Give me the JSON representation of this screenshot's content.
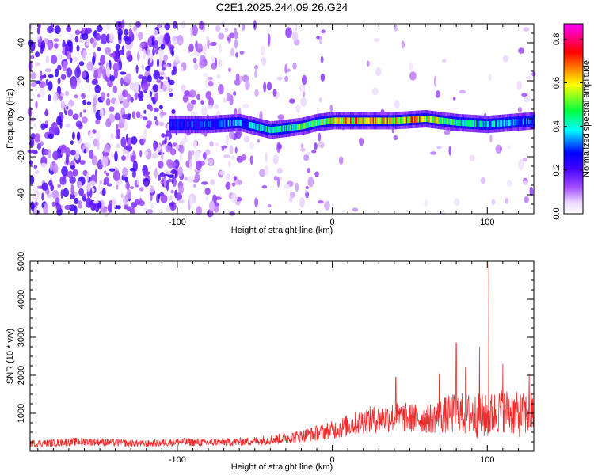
{
  "title": "C2E1.2025.244.09.26.G24",
  "chart_data": [
    {
      "type": "heatmap",
      "title": "C2E1.2025.244.09.26.G24",
      "xlabel": "Height of straight line (km)",
      "ylabel": "Frequency (Hz)",
      "xlim": [
        -195,
        130
      ],
      "ylim": [
        -50,
        50
      ],
      "xticks": [
        -100,
        0,
        100
      ],
      "yticks": [
        -40,
        -20,
        0,
        20,
        40
      ],
      "colorbar": {
        "label": "Normalized spectral amplitude",
        "range": [
          0,
          0.87
        ],
        "ticks": [
          0,
          0.2,
          0.4,
          0.6,
          0.8
        ],
        "colors": [
          "#ffffff",
          "#e6c8ff",
          "#8a2be2",
          "#0000ff",
          "#00ffff",
          "#00ff00",
          "#ffff00",
          "#ff0000",
          "#ff00ff"
        ]
      },
      "ridge": {
        "description": "strong signal band near 0 Hz",
        "x": [
          -105,
          -80,
          -60,
          -40,
          -30,
          -20,
          -10,
          0,
          20,
          40,
          60,
          80,
          100,
          130
        ],
        "y": [
          -3,
          -3,
          -2,
          -6,
          -5,
          -4,
          -2,
          -1,
          -1,
          -1,
          0,
          -2,
          -3,
          -1
        ],
        "amplitude": [
          0.3,
          0.35,
          0.4,
          0.5,
          0.5,
          0.55,
          0.6,
          0.7,
          0.75,
          0.8,
          0.75,
          0.5,
          0.45,
          0.35
        ]
      },
      "noise_regions": [
        {
          "x_from": -195,
          "x_to": -100,
          "level": "high"
        },
        {
          "x_from": -100,
          "x_to": -60,
          "level": "medium"
        },
        {
          "x_from": -60,
          "x_to": 0,
          "level": "low"
        },
        {
          "x_from": 0,
          "x_to": 130,
          "level": "very low"
        }
      ]
    },
    {
      "type": "line",
      "xlabel": "Height of straight line (km)",
      "ylabel": "SNR (10 * v/v)",
      "xlim": [
        -195,
        130
      ],
      "ylim": [
        0,
        5000
      ],
      "xticks": [
        -100,
        0,
        100
      ],
      "yticks": [
        1000,
        2000,
        3000,
        4000,
        5000
      ],
      "color": "#ee2c2c",
      "series": [
        {
          "name": "SNR",
          "x": [
            -195,
            -180,
            -160,
            -140,
            -120,
            -100,
            -80,
            -60,
            -40,
            -20,
            0,
            20,
            40,
            60,
            80,
            90,
            100,
            110,
            120,
            130
          ],
          "values": [
            200,
            220,
            260,
            230,
            200,
            250,
            230,
            250,
            300,
            400,
            550,
            800,
            900,
            850,
            1000,
            950,
            900,
            1100,
            950,
            1000
          ],
          "spread": [
            100,
            100,
            110,
            100,
            90,
            110,
            100,
            110,
            130,
            170,
            250,
            350,
            400,
            380,
            550,
            600,
            600,
            600,
            600,
            600
          ],
          "peaks": [
            {
              "x": 41,
              "value": 1950
            },
            {
              "x": 69,
              "value": 2050
            },
            {
              "x": 80,
              "value": 2850
            },
            {
              "x": 86,
              "value": 2200
            },
            {
              "x": 95,
              "value": 2750
            },
            {
              "x": 101,
              "value": 5000
            },
            {
              "x": 110,
              "value": 2300
            },
            {
              "x": 127,
              "value": 2050
            }
          ]
        }
      ]
    }
  ]
}
